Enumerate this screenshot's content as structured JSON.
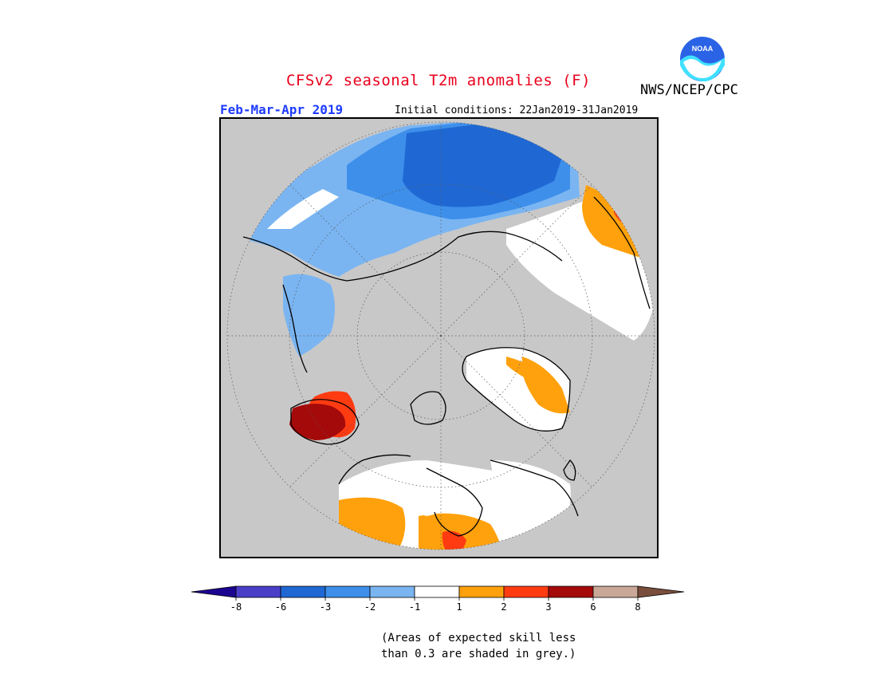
{
  "header": {
    "title": "CFSv2 seasonal T2m anomalies (F)",
    "period": "Feb-Mar-Apr 2019",
    "initial_conditions": "Initial conditions: 22Jan2019-31Jan2019",
    "agency": "NWS/NCEP/CPC",
    "logo_text": "NOAA"
  },
  "colors": {
    "title": "#e8001c",
    "period": "#1e3cff",
    "grey_mask": "#c8c8c8",
    "land_outline": "#000000"
  },
  "colorbar": {
    "bins": [
      {
        "color": "#1b0590"
      },
      {
        "color": "#4a3ec9"
      },
      {
        "color": "#1f68d4"
      },
      {
        "color": "#3d8fea"
      },
      {
        "color": "#7ab5f2"
      },
      {
        "color": "#ffffff"
      },
      {
        "color": "#ffa10c"
      },
      {
        "color": "#ff3b12"
      },
      {
        "color": "#a50a0a"
      },
      {
        "color": "#c9a898"
      },
      {
        "color": "#7a4e3c"
      }
    ],
    "tick_labels": [
      "-8",
      "-6",
      "-3",
      "-2",
      "-1",
      "1",
      "2",
      "3",
      "6",
      "8"
    ]
  },
  "map": {
    "projection": "north polar stereographic"
  },
  "footnote": {
    "line1": "(Areas of expected skill less",
    "line2": "than 0.3 are shaded in grey.)"
  }
}
